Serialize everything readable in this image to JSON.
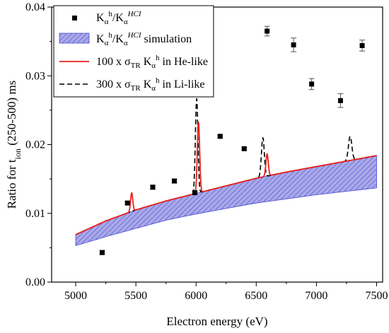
{
  "chart_data": {
    "type": "scatter",
    "xlabel": "Electron energy (eV)",
    "ylabel_parts": {
      "pre": "Ratio for t",
      "sub": "ion",
      "post": " (250-500) ms"
    },
    "xlim": [
      4800,
      7550
    ],
    "ylim": [
      0,
      0.04
    ],
    "x_ticks": [
      5000,
      5500,
      6000,
      6500,
      7000,
      7500
    ],
    "y_ticks": [
      0.0,
      0.01,
      0.02,
      0.03,
      0.04
    ],
    "y_tick_labels": [
      "0.00",
      "0.01",
      "0.02",
      "0.03",
      "0.04"
    ],
    "grid": false,
    "legend_position": "top-left",
    "colors": {
      "markers": "#000000",
      "band_fill": "#a9a9e8",
      "band_hatch": "#4a4ad6",
      "red_line": "#e8211d",
      "dashed_line": "#000000"
    },
    "legend": [
      {
        "kind": "marker",
        "base": "K",
        "sub": "α",
        "sup": "h",
        "sep": "/K",
        "sub2": "α",
        "sup2": "HCI",
        "tail": ""
      },
      {
        "kind": "band",
        "base": "K",
        "sub": "α",
        "sup": "h",
        "sep": "/K",
        "sub2": "α",
        "sup2": "HCI",
        "tail": " simulation"
      },
      {
        "kind": "red",
        "pre": "100 x σ",
        "sub": "TR",
        "mid": " K",
        "sub2": "α",
        "sup2": "h",
        "tail": " in He-like"
      },
      {
        "kind": "dash",
        "pre": "300 x σ",
        "sub": "TR",
        "mid": " K",
        "sub2": "α",
        "sup2": "h",
        "tail": " in Li-like"
      }
    ],
    "measured_points": [
      {
        "x": 5220,
        "y": 0.0043,
        "err": 0.0003
      },
      {
        "x": 5430,
        "y": 0.0115,
        "err": 0.0002
      },
      {
        "x": 5640,
        "y": 0.0138,
        "err": 0.0003
      },
      {
        "x": 5820,
        "y": 0.0147,
        "err": 0.0003
      },
      {
        "x": 5990,
        "y": 0.013,
        "err": 0.0002
      },
      {
        "x": 6200,
        "y": 0.0212,
        "err": 0.0002
      },
      {
        "x": 6400,
        "y": 0.0194,
        "err": 0.0002
      },
      {
        "x": 6590,
        "y": 0.0365,
        "err": 0.0007
      },
      {
        "x": 6810,
        "y": 0.0345,
        "err": 0.001
      },
      {
        "x": 6960,
        "y": 0.0288,
        "err": 0.0008
      },
      {
        "x": 7200,
        "y": 0.0264,
        "err": 0.001
      },
      {
        "x": 7380,
        "y": 0.0344,
        "err": 0.0008
      }
    ],
    "simulation_band": {
      "x": [
        5000,
        5250,
        5500,
        5750,
        6000,
        6250,
        6500,
        6750,
        7000,
        7250,
        7500
      ],
      "upper": [
        0.0069,
        0.0089,
        0.0105,
        0.0118,
        0.0129,
        0.014,
        0.0151,
        0.016,
        0.0168,
        0.0176,
        0.0184
      ],
      "lower": [
        0.0053,
        0.0066,
        0.0078,
        0.009,
        0.0099,
        0.0107,
        0.0115,
        0.0121,
        0.0127,
        0.0132,
        0.0137
      ]
    },
    "he_like_peaks": [
      {
        "x": 5465,
        "height": 0.0027,
        "width": 13
      },
      {
        "x": 6020,
        "height": 0.0103,
        "width": 14
      },
      {
        "x": 6590,
        "height": 0.0032,
        "width": 14
      }
    ],
    "li_like_peaks": [
      {
        "x": 6005,
        "height": 0.0138,
        "width": 15
      },
      {
        "x": 6555,
        "height": 0.0057,
        "width": 17
      },
      {
        "x": 7280,
        "height": 0.0035,
        "width": 20
      }
    ]
  }
}
